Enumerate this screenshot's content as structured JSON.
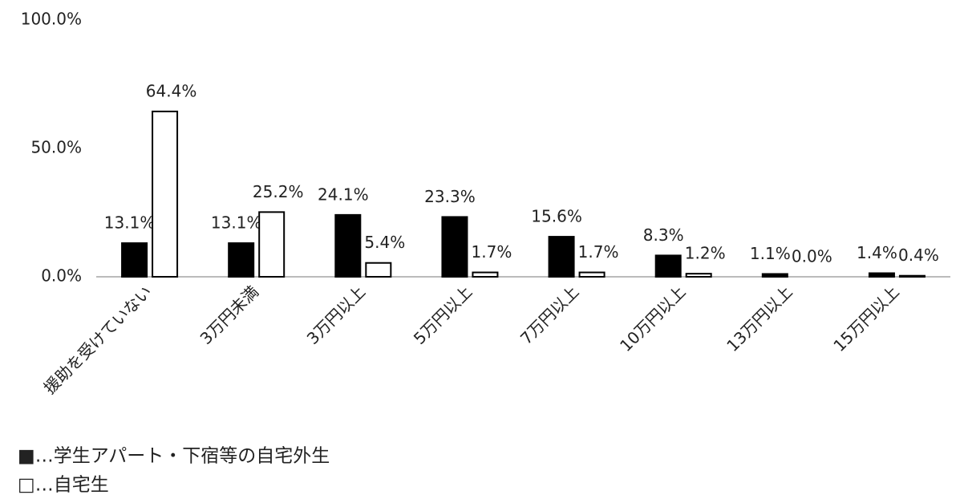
{
  "chart_data": {
    "type": "bar",
    "categories": [
      "援助を受けていない",
      "3万円未満",
      "3万円以上",
      "5万円以上",
      "7万円以上",
      "10万円以上",
      "13万円以上",
      "15万円以上"
    ],
    "series": [
      {
        "name": "■…学生アパート・下宿等の自宅外生",
        "color": "#000000",
        "values": [
          13.1,
          13.1,
          24.1,
          23.3,
          15.6,
          8.3,
          1.1,
          1.4
        ],
        "value_labels": [
          "13.1%",
          "13.1%",
          "24.1%",
          "23.3%",
          "15.6%",
          "8.3%",
          "1.1%",
          "1.4%"
        ]
      },
      {
        "name": "□…自宅生",
        "color": "#ffffff",
        "values": [
          64.4,
          25.2,
          5.4,
          1.7,
          1.7,
          1.2,
          0.0,
          0.4
        ],
        "value_labels": [
          "64.4%",
          "25.2%",
          "5.4%",
          "1.7%",
          "1.7%",
          "1.2%",
          "0.0%",
          "0.4%"
        ]
      }
    ],
    "ylim": [
      0,
      100
    ],
    "yticks": [
      {
        "value": 0,
        "label": "0.0%"
      },
      {
        "value": 50,
        "label": "50.0%"
      },
      {
        "value": 100,
        "label": "100.0%"
      }
    ],
    "grid": false
  }
}
